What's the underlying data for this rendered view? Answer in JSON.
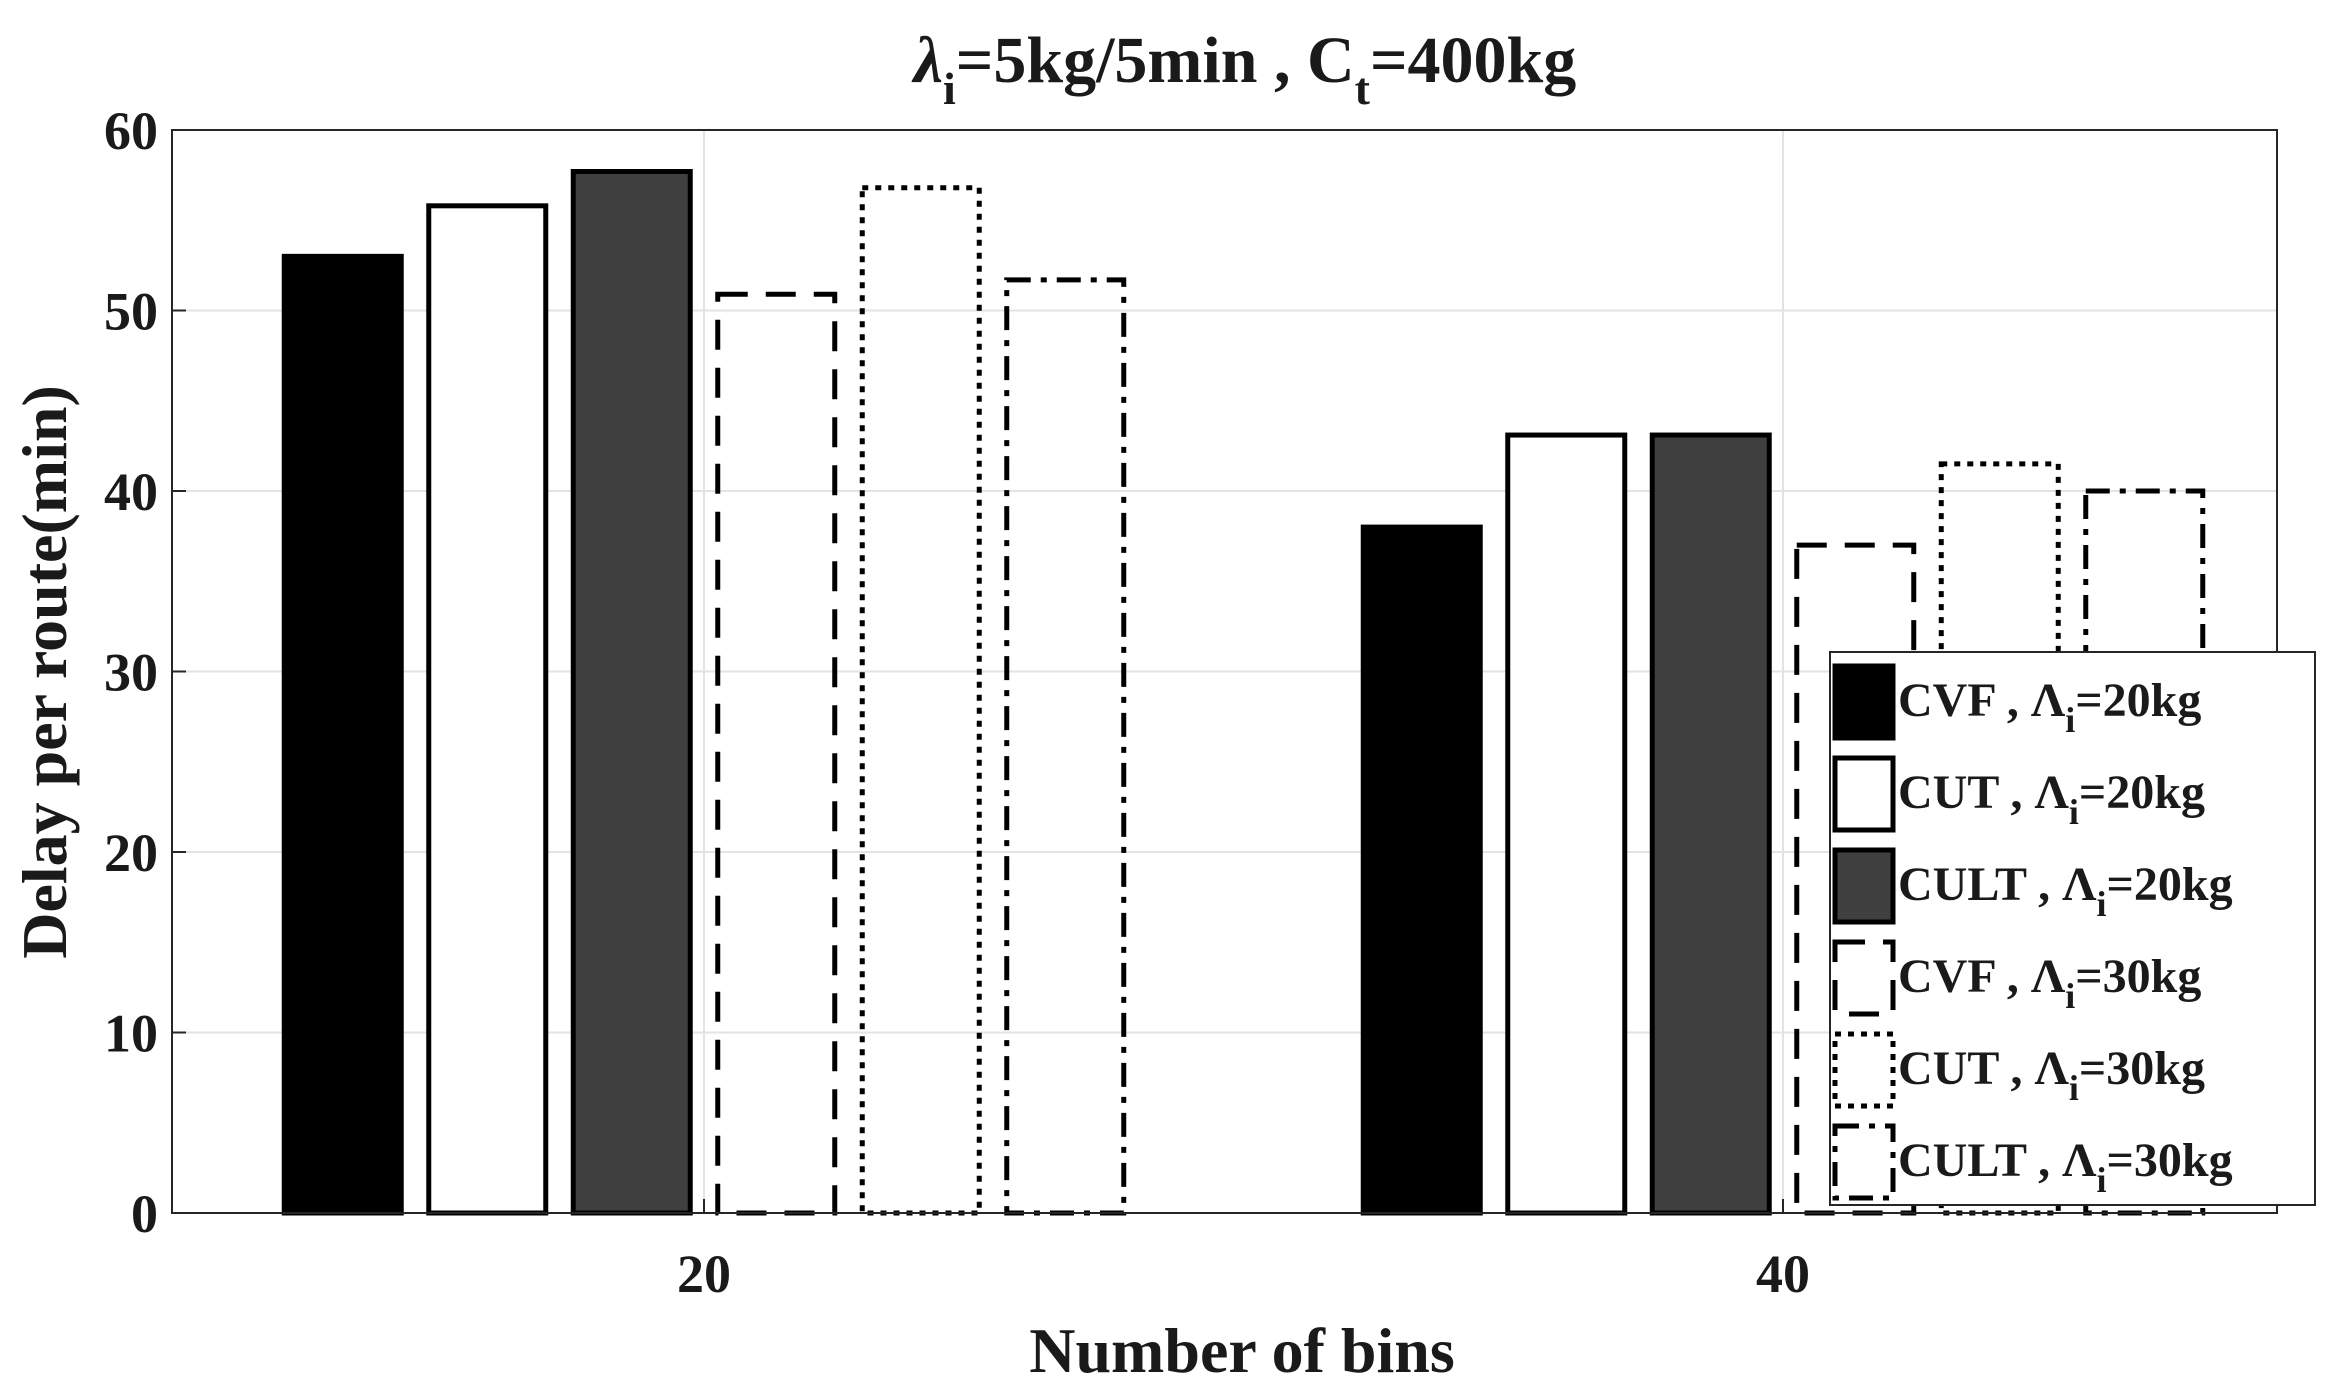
{
  "chart_data": {
    "type": "bar",
    "title_parts": {
      "lambda_sym": "λ",
      "lambda_sub": "i",
      "mid": "=5kg/5min , C",
      "c_sub": "t",
      "end": "=400kg"
    },
    "xlabel": "Number of bins",
    "ylabel": "Delay per route(min)",
    "categories": [
      "20",
      "40"
    ],
    "ylim": [
      0,
      60
    ],
    "yticks": [
      "0",
      "10",
      "20",
      "30",
      "40",
      "50",
      "60"
    ],
    "grid": true,
    "legend_position": "bottom-right",
    "series": [
      {
        "name": "CVF , Λi=20kg",
        "label_main": "CVF , Λ",
        "label_sub": "i",
        "label_end": "=20kg",
        "style": "solid-black",
        "values": [
          53,
          38
        ]
      },
      {
        "name": "CUT , Λi=20kg",
        "label_main": "CUT , Λ",
        "label_sub": "i",
        "label_end": "=20kg",
        "style": "solid-white",
        "values": [
          55.8,
          43.1
        ]
      },
      {
        "name": "CULT , Λi=20kg",
        "label_main": "CULT , Λ",
        "label_sub": "i",
        "label_end": "=20kg",
        "style": "solid-gray",
        "values": [
          57.7,
          43.1
        ]
      },
      {
        "name": "CVF , Λi=30kg",
        "label_main": "CVF , Λ",
        "label_sub": "i",
        "label_end": "=30kg",
        "style": "dashed",
        "values": [
          50.9,
          37
        ]
      },
      {
        "name": "CUT , Λi=30kg",
        "label_main": "CUT , Λ",
        "label_sub": "i",
        "label_end": "=30kg",
        "style": "dotted",
        "values": [
          56.8,
          41.5
        ]
      },
      {
        "name": "CULT , Λi=30kg",
        "label_main": "CULT , Λ",
        "label_sub": "i",
        "label_end": "=30kg",
        "style": "dashdot",
        "values": [
          51.7,
          40
        ]
      }
    ],
    "colors": {
      "black": "#000000",
      "gray": "#404040",
      "white": "#ffffff",
      "grid": "#e3e3e3",
      "axis": "#262626"
    }
  }
}
